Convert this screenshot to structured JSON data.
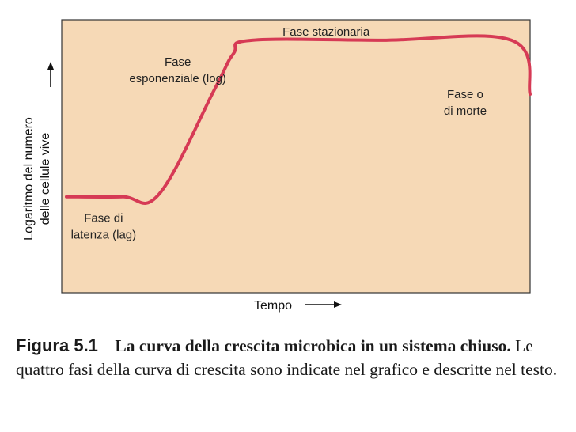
{
  "chart_data": {
    "type": "line",
    "title": "",
    "xlabel": "Tempo",
    "ylabel_line1": "Logaritmo del numero",
    "ylabel_line2": "delle cellule vive",
    "grid": false,
    "background_color": "#f6d9b6",
    "line_color": "#d63a55",
    "xlim": [
      0,
      100
    ],
    "ylim": [
      0,
      100
    ],
    "x": [
      0,
      12,
      20,
      32,
      36,
      40,
      68,
      96,
      100
    ],
    "y": [
      35,
      35,
      36,
      75,
      88,
      93,
      93,
      93,
      73
    ],
    "annotations": [
      {
        "lines": [
          "Fase stazionaria"
        ],
        "x": 56,
        "y": 93
      },
      {
        "lines": [
          "Fase",
          "esponenziale (log)"
        ],
        "x": 24,
        "y": 76
      },
      {
        "lines": [
          "Fase o",
          "di morte"
        ],
        "x": 86,
        "y": 68
      },
      {
        "lines": [
          "Fase di",
          "latenza (lag)"
        ],
        "x": 8,
        "y": 28
      }
    ]
  },
  "caption": {
    "number": "Figura 5.1",
    "title": "La curva della crescita microbica in un sistema",
    "subtitle": "chiuso.",
    "text": " Le quattro fasi della curva di crescita sono indicate nel grafico e descritte nel testo."
  }
}
